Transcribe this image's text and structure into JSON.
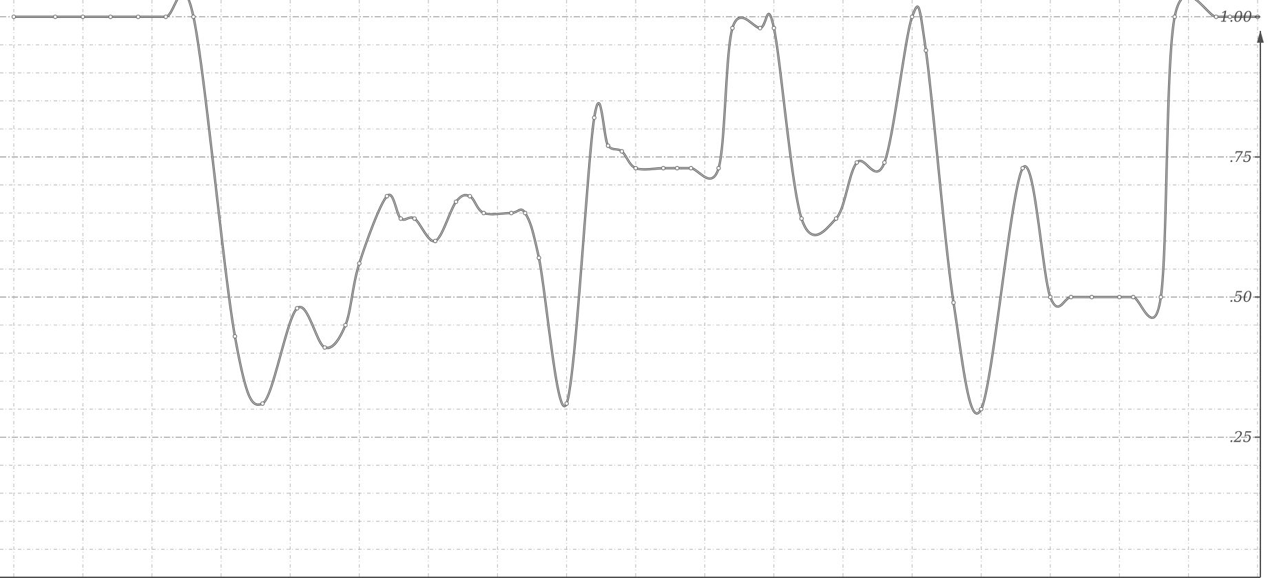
{
  "chart_data": {
    "type": "line",
    "title": "",
    "xlabel": "",
    "ylabel": "",
    "ylim": [
      0,
      1.03
    ],
    "grid": true,
    "legend": "none",
    "y_axis_side": "right",
    "yticks": [
      {
        "value": 1.0,
        "label": "1.00"
      },
      {
        "value": 0.75,
        "label": ".75"
      },
      {
        "value": 0.5,
        "label": ".50"
      },
      {
        "value": 0.25,
        "label": ".25"
      }
    ],
    "x_gridlines": [
      1,
      6,
      11,
      16,
      21,
      26,
      31,
      36,
      41,
      46,
      51,
      56,
      61,
      66,
      71,
      76,
      81,
      86,
      91
    ],
    "colors": {
      "line": "#5a5a5a",
      "grid": "#9a9a9a",
      "axis": "#505050",
      "label": "#4a4a4a"
    },
    "series": [
      {
        "x": [
          1,
          4,
          6,
          8,
          10,
          12,
          14,
          17,
          19,
          21.5,
          23.5,
          25,
          26,
          28,
          29,
          30,
          31.5,
          33,
          34,
          35,
          37,
          38,
          39,
          41,
          43,
          44,
          45,
          46,
          48,
          49,
          50,
          52,
          53,
          55,
          56,
          58,
          60.5,
          62,
          64,
          66,
          67,
          69,
          71,
          74,
          76,
          77.5,
          79,
          81,
          82,
          84,
          85,
          88,
          89,
          91
        ],
        "y": [
          1.0,
          1.0,
          1.0,
          1.0,
          1.0,
          1.0,
          1.0,
          0.43,
          0.31,
          0.48,
          0.41,
          0.45,
          0.56,
          0.68,
          0.64,
          0.64,
          0.6,
          0.67,
          0.68,
          0.65,
          0.65,
          0.65,
          0.57,
          0.31,
          0.82,
          0.77,
          0.76,
          0.73,
          0.73,
          0.73,
          0.73,
          0.73,
          0.98,
          0.98,
          0.98,
          0.64,
          0.64,
          0.74,
          0.74,
          1.0,
          0.94,
          0.49,
          0.3,
          0.73,
          0.5,
          0.5,
          0.5,
          0.5,
          0.5,
          0.5,
          1.0,
          1.0,
          1.0,
          1.0
        ]
      }
    ]
  }
}
